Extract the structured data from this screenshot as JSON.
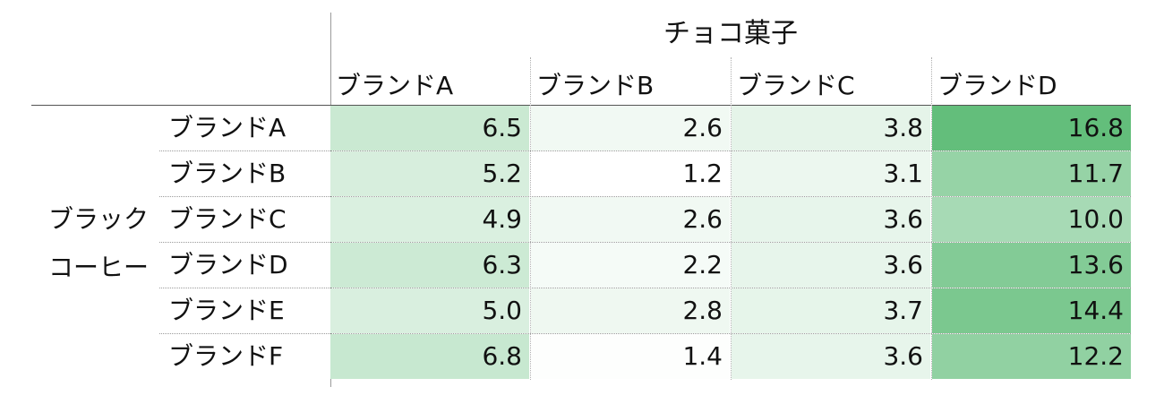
{
  "chart_data": {
    "type": "heatmap",
    "column_group_label": "チョコ菓子",
    "row_group_label_lines": [
      "ブラック",
      "コーヒー"
    ],
    "columns": [
      "ブランドA",
      "ブランドB",
      "ブランドC",
      "ブランドD"
    ],
    "rows": [
      "ブランドA",
      "ブランドB",
      "ブランドC",
      "ブランドD",
      "ブランドE",
      "ブランドF"
    ],
    "values": [
      [
        "6.5",
        "2.6",
        "3.8",
        "16.8"
      ],
      [
        "5.2",
        "1.2",
        "3.1",
        "11.7"
      ],
      [
        "4.9",
        "2.6",
        "3.6",
        "10.0"
      ],
      [
        "6.3",
        "2.2",
        "3.6",
        "13.6"
      ],
      [
        "5.0",
        "2.8",
        "3.7",
        "14.4"
      ],
      [
        "6.8",
        "1.4",
        "3.6",
        "12.2"
      ]
    ],
    "color_min": "#ffffff",
    "color_max": "#63be7b",
    "value_range": [
      1.2,
      16.8
    ]
  }
}
